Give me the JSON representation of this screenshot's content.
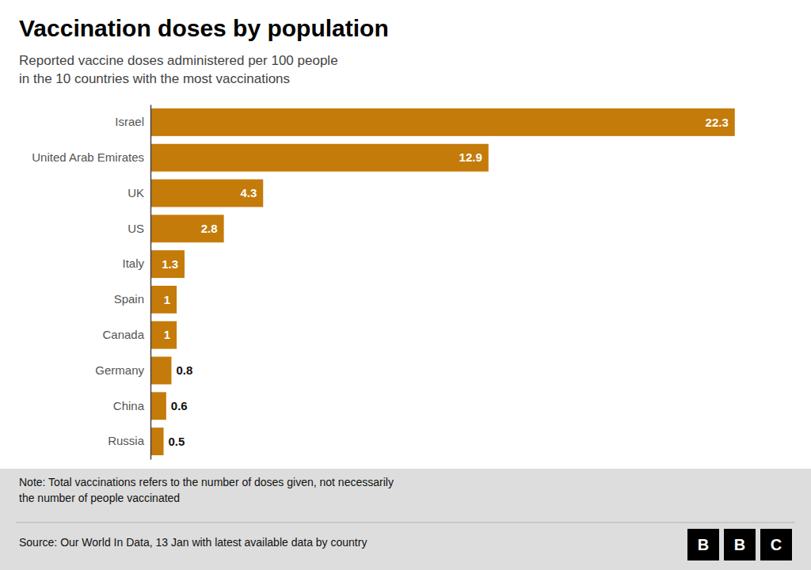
{
  "chart_data": {
    "type": "bar",
    "orientation": "horizontal",
    "title": "Vaccination doses by population",
    "subtitle": "Reported vaccine doses administered per 100 people\nin the 10 countries with the most vaccinations",
    "categories": [
      "Israel",
      "United Arab Emirates",
      "UK",
      "US",
      "Italy",
      "Spain",
      "Canada",
      "Germany",
      "China",
      "Russia"
    ],
    "values": [
      22.3,
      12.9,
      4.3,
      2.8,
      1.3,
      1.0,
      1.0,
      0.8,
      0.6,
      0.5
    ],
    "color": "#C47B0A",
    "xlim": [
      0,
      24
    ],
    "data_labels": true,
    "tick_labels": "y",
    "grid": false,
    "note": "Note: Total vaccinations refers to the number of doses given, not necessarily\nthe number of people vaccinated",
    "source": "Source: Our World In Data, 13 Jan with latest available data by country",
    "annotations": [
      "B",
      "B",
      "C"
    ]
  }
}
